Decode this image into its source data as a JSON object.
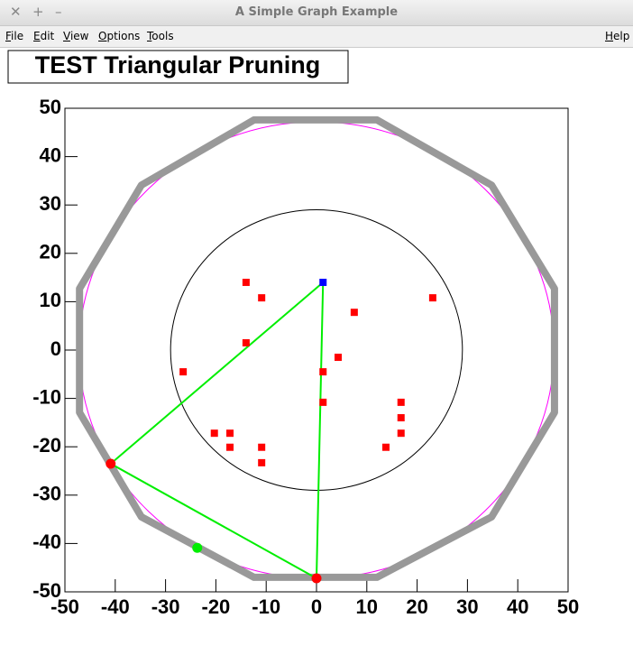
{
  "window": {
    "title": "A Simple Graph Example",
    "menu": [
      "File",
      "Edit",
      "View",
      "Options",
      "Tools"
    ],
    "help": "Help"
  },
  "chart_data": {
    "type": "scatter",
    "title": "TEST Triangular Pruning",
    "xlim": [
      -50,
      50
    ],
    "xticks": [
      -50,
      -40,
      -30,
      -20,
      -10,
      0,
      10,
      20,
      30,
      40,
      50
    ],
    "ylim": [
      -50,
      50
    ],
    "yticks": [
      -50,
      -40,
      -30,
      -20,
      -10,
      0,
      10,
      20,
      30,
      40,
      50
    ],
    "circles": [
      {
        "r": 29,
        "color": "#000000"
      },
      {
        "r": 47.2,
        "color": "#ff00ff"
      }
    ],
    "series": [
      {
        "marker": "none",
        "closed": true,
        "color": "#999999",
        "width": 8,
        "x": [
          -12.4,
          12.0,
          34.8,
          47.3,
          47.3,
          34.8,
          12.0,
          -12.4,
          -34.8,
          -47.1,
          -47.1,
          -34.8
        ],
        "y": [
          47.6,
          47.6,
          34.1,
          12.7,
          -12.9,
          -34.5,
          -47.0,
          -47.0,
          -34.5,
          -12.9,
          12.7,
          34.1
        ]
      },
      {
        "marker": "none",
        "closed": true,
        "color": "#00ee00",
        "width": 2,
        "x": [
          1.3,
          -40.9,
          0
        ],
        "y": [
          14.0,
          -23.5,
          -47.2
        ]
      },
      {
        "marker": "square",
        "color": "#ff0000",
        "x": [
          -14.0,
          -10.9,
          7.5,
          23.1,
          -14.0,
          4.3,
          -26.5,
          1.3,
          1.3,
          16.8,
          16.8,
          16.8,
          -20.3,
          -17.2,
          -17.2,
          -10.9,
          -10.9,
          13.8
        ],
        "y": [
          14.0,
          10.8,
          7.8,
          10.8,
          1.5,
          -1.5,
          -4.5,
          -4.5,
          -10.8,
          -10.8,
          -14.0,
          -17.2,
          -17.2,
          -17.2,
          -20.1,
          -20.1,
          -23.3,
          -20.1
        ]
      },
      {
        "marker": "square",
        "color": "#0000ff",
        "x": [
          1.3
        ],
        "y": [
          14.0
        ]
      },
      {
        "marker": "circle",
        "color": "#ff0000",
        "x": [
          -40.9,
          0
        ],
        "y": [
          -23.5,
          -47.2
        ]
      },
      {
        "marker": "circle",
        "color": "#00ee00",
        "x": [
          -23.7
        ],
        "y": [
          -40.9
        ]
      }
    ]
  }
}
